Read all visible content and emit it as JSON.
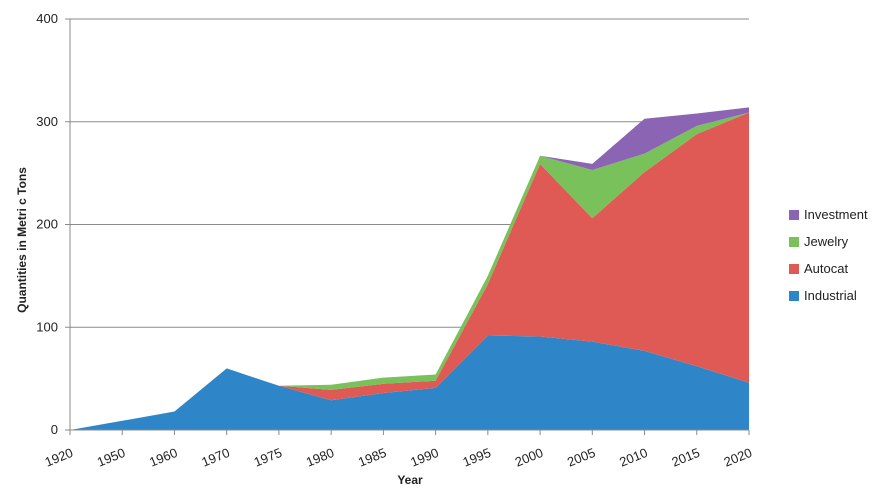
{
  "chart_data": {
    "type": "area",
    "stacked": true,
    "xlabel": "Year",
    "ylabel": "Quantities in Metri c Tons",
    "ylim": [
      0,
      400
    ],
    "yticks": [
      0,
      100,
      200,
      300,
      400
    ],
    "x": [
      "1920",
      "1950",
      "1960",
      "1970",
      "1975",
      "1980",
      "1985",
      "1990",
      "1995",
      "2000",
      "2005",
      "2010",
      "2015",
      "2020"
    ],
    "series": [
      {
        "name": "Industrial",
        "color": "#2e86c8",
        "values": [
          0,
          9,
          18,
          60,
          43,
          29,
          36,
          41,
          92,
          91,
          86,
          77,
          62,
          46
        ]
      },
      {
        "name": "Autocat",
        "color": "#e05a55",
        "values": [
          0,
          0,
          0,
          0,
          0,
          10,
          9,
          7,
          50,
          168,
          120,
          174,
          226,
          263
        ]
      },
      {
        "name": "Jewelry",
        "color": "#79c15b",
        "values": [
          0,
          0,
          0,
          0,
          0,
          5,
          6,
          6,
          8,
          8,
          47,
          18,
          8,
          0
        ]
      },
      {
        "name": "Investment",
        "color": "#8b64b3",
        "values": [
          0,
          0,
          0,
          0,
          0,
          0,
          0,
          0,
          0,
          0,
          6,
          34,
          12,
          5
        ]
      }
    ],
    "legend": {
      "position": "right",
      "order": [
        "Investment",
        "Jewelry",
        "Autocat",
        "Industrial"
      ]
    },
    "grid": true
  }
}
